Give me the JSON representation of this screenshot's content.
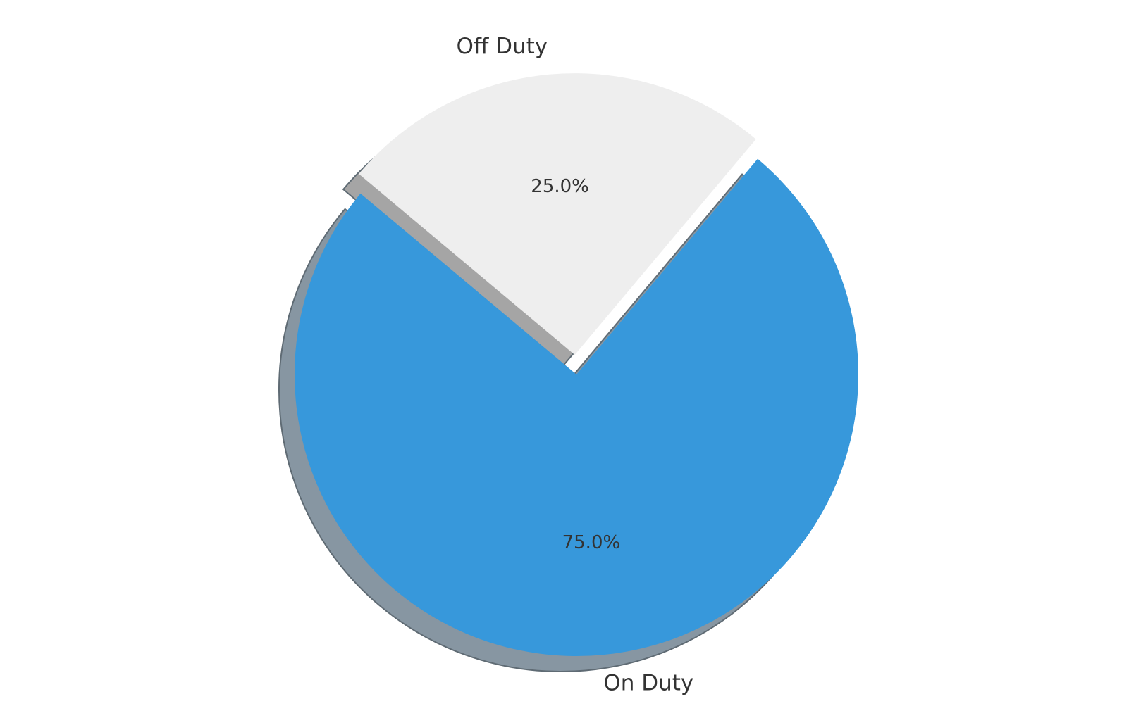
{
  "chart_data": {
    "type": "pie",
    "title": "",
    "categories": [
      "On Duty",
      "Off Duty"
    ],
    "values": [
      75.0,
      25.0
    ],
    "percent_labels": [
      "75.0%",
      "25.0%"
    ],
    "colors": [
      "#3798db",
      "#eeeeee"
    ],
    "shadow_colors": [
      "#8796a2",
      "#a5a5a5"
    ],
    "exploded": [
      "Off Duty"
    ],
    "shadow": true,
    "start_angle_deg": 140,
    "direction": "counterclockwise"
  }
}
